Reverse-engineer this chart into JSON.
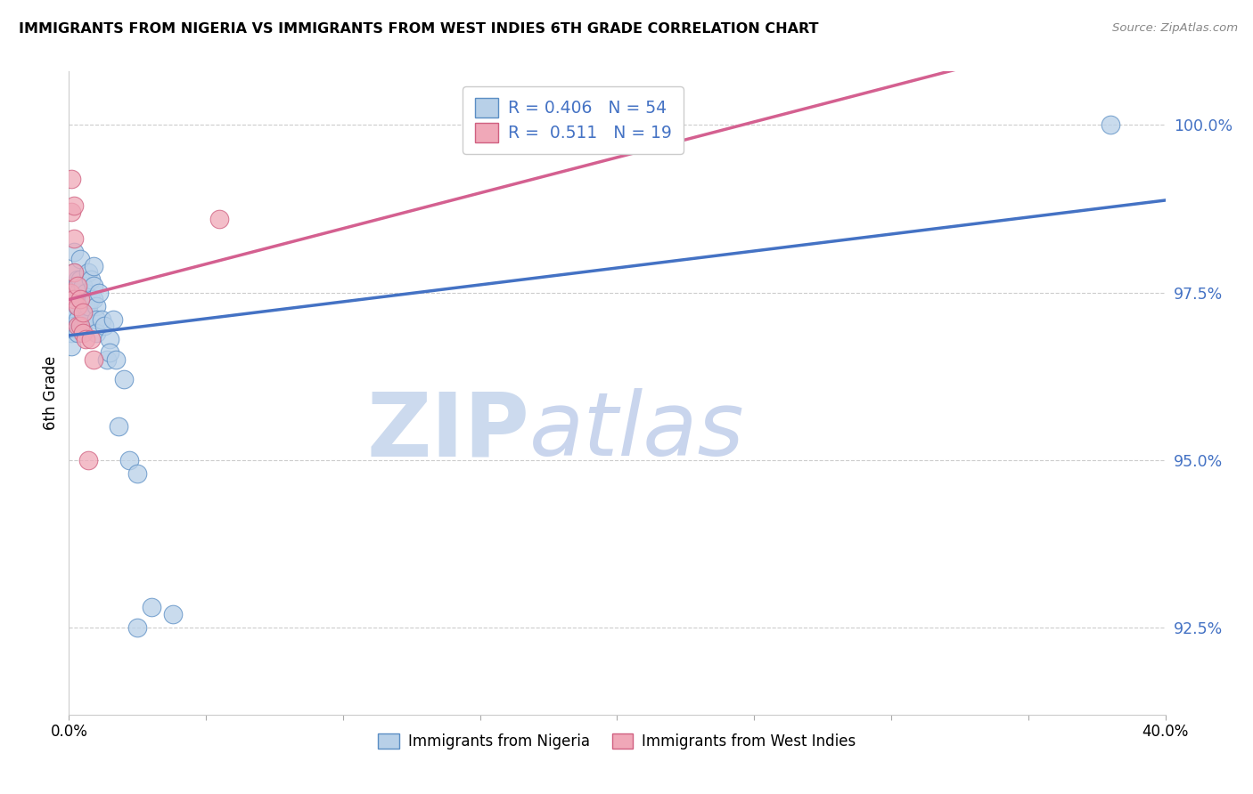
{
  "title": "IMMIGRANTS FROM NIGERIA VS IMMIGRANTS FROM WEST INDIES 6TH GRADE CORRELATION CHART",
  "source": "Source: ZipAtlas.com",
  "ylabel": "6th Grade",
  "yticks": [
    92.5,
    95.0,
    97.5,
    100.0
  ],
  "ytick_labels": [
    "92.5%",
    "95.0%",
    "97.5%",
    "100.0%"
  ],
  "xmin": 0.0,
  "xmax": 0.4,
  "ymin": 91.2,
  "ymax": 100.8,
  "legend_r_nigeria": "0.406",
  "legend_n_nigeria": "54",
  "legend_r_windies": "0.511",
  "legend_n_windies": "19",
  "color_nigeria_face": "#b8d0e8",
  "color_windies_face": "#f0a8b8",
  "color_nigeria_edge": "#5b8ec4",
  "color_windies_edge": "#d06080",
  "color_nigeria_line": "#4472c4",
  "color_windies_line": "#d46090",
  "nigeria_x": [
    0.0005,
    0.0005,
    0.001,
    0.001,
    0.001,
    0.001,
    0.001,
    0.002,
    0.002,
    0.002,
    0.002,
    0.002,
    0.002,
    0.003,
    0.003,
    0.003,
    0.003,
    0.003,
    0.004,
    0.004,
    0.004,
    0.005,
    0.005,
    0.005,
    0.005,
    0.006,
    0.006,
    0.006,
    0.007,
    0.007,
    0.008,
    0.008,
    0.009,
    0.009,
    0.009,
    0.01,
    0.01,
    0.01,
    0.011,
    0.012,
    0.013,
    0.014,
    0.015,
    0.015,
    0.016,
    0.017,
    0.018,
    0.02,
    0.022,
    0.025,
    0.025,
    0.03,
    0.038,
    0.38
  ],
  "nigeria_y": [
    97.3,
    97.0,
    97.5,
    97.3,
    97.1,
    96.9,
    96.7,
    98.1,
    97.8,
    97.6,
    97.4,
    97.2,
    97.0,
    97.7,
    97.5,
    97.3,
    97.1,
    96.9,
    98.0,
    97.7,
    97.4,
    97.6,
    97.4,
    97.2,
    97.0,
    97.5,
    97.3,
    97.1,
    97.8,
    97.3,
    97.7,
    97.4,
    97.9,
    97.6,
    97.4,
    97.3,
    97.1,
    96.9,
    97.5,
    97.1,
    97.0,
    96.5,
    96.8,
    96.6,
    97.1,
    96.5,
    95.5,
    96.2,
    95.0,
    94.8,
    92.5,
    92.8,
    92.7,
    100.0
  ],
  "windies_x": [
    0.0005,
    0.001,
    0.001,
    0.002,
    0.002,
    0.002,
    0.002,
    0.003,
    0.003,
    0.003,
    0.004,
    0.004,
    0.005,
    0.005,
    0.006,
    0.007,
    0.008,
    0.009,
    0.055
  ],
  "windies_y": [
    97.5,
    99.2,
    98.7,
    98.8,
    98.3,
    97.8,
    97.4,
    97.6,
    97.3,
    97.0,
    97.4,
    97.0,
    97.2,
    96.9,
    96.8,
    95.0,
    96.8,
    96.5,
    98.6
  ]
}
